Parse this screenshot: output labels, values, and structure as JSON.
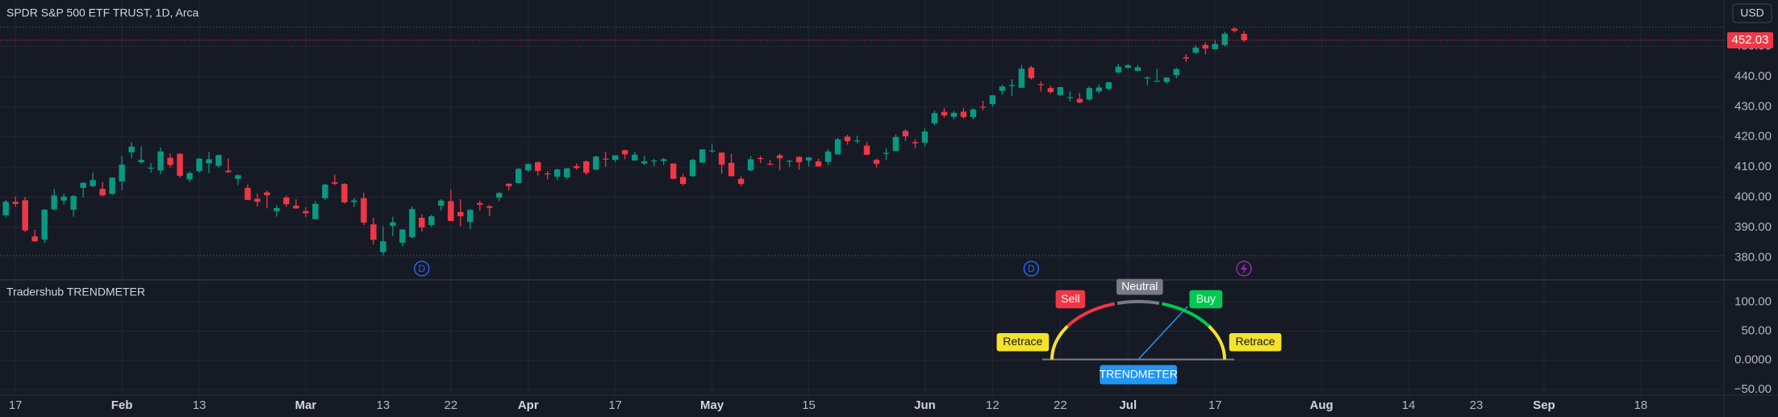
{
  "chart_data": [
    {
      "type": "candlestick",
      "title": "SPDR S&P 500 ETF TRUST, 1D, Arca",
      "currency": "USD",
      "up_color": "#089981",
      "down_color": "#f23645",
      "xlim": [
        -0.6,
        177.6
      ],
      "ylim": [
        372.6,
        465.4
      ],
      "yticks": [
        {
          "value": 380,
          "label": "380.00"
        },
        {
          "value": 390,
          "label": "390.00"
        },
        {
          "value": 400,
          "label": "400.00"
        },
        {
          "value": 410,
          "label": "410.00"
        },
        {
          "value": 420,
          "label": "420.00"
        },
        {
          "value": 430,
          "label": "430.00"
        },
        {
          "value": 440,
          "label": "440.00"
        },
        {
          "value": 450,
          "label": "450.00"
        }
      ],
      "xticks": [
        {
          "value": 1,
          "label": "17"
        },
        {
          "value": 12,
          "label": "Feb"
        },
        {
          "value": 20,
          "label": "13"
        },
        {
          "value": 31,
          "label": "Mar"
        },
        {
          "value": 39,
          "label": "13"
        },
        {
          "value": 46,
          "label": "22"
        },
        {
          "value": 54,
          "label": "Apr"
        },
        {
          "value": 63,
          "label": "17"
        },
        {
          "value": 73,
          "label": "May"
        },
        {
          "value": 83,
          "label": "15"
        },
        {
          "value": 95,
          "label": "Jun"
        },
        {
          "value": 102,
          "label": "12"
        },
        {
          "value": 109,
          "label": "22"
        },
        {
          "value": 116,
          "label": "Jul"
        },
        {
          "value": 125,
          "label": "17"
        },
        {
          "value": 136,
          "label": "Aug"
        },
        {
          "value": 145,
          "label": "14"
        },
        {
          "value": 152,
          "label": "23"
        },
        {
          "value": 159,
          "label": "Sep"
        },
        {
          "value": 169,
          "label": "18"
        }
      ],
      "grid": true,
      "events": [
        {
          "label": "D",
          "at": 43
        },
        {
          "label": "D",
          "at": 106
        }
      ],
      "ohlc": [
        [
          394.0,
          399.1,
          393.3,
          398.5
        ],
        [
          398.5,
          400.2,
          396.8,
          397.8
        ],
        [
          399.0,
          400.1,
          388.4,
          389.0
        ],
        [
          387.0,
          389.2,
          385.2,
          385.4
        ],
        [
          386.0,
          396.0,
          384.9,
          395.9
        ],
        [
          396.0,
          402.7,
          395.6,
          400.6
        ],
        [
          398.9,
          401.2,
          397.6,
          400.2
        ],
        [
          395.9,
          400.7,
          393.6,
          400.4
        ],
        [
          403.1,
          404.9,
          400.0,
          404.8
        ],
        [
          403.7,
          408.2,
          403.4,
          405.7
        ],
        [
          402.8,
          405.1,
          400.3,
          400.6
        ],
        [
          401.1,
          406.5,
          400.8,
          406.5
        ],
        [
          405.2,
          413.7,
          402.4,
          410.8
        ],
        [
          414.9,
          418.3,
          412.9,
          416.8
        ],
        [
          411.6,
          416.9,
          411.1,
          412.4
        ],
        [
          409.8,
          411.3,
          408.1,
          409.8
        ],
        [
          408.9,
          416.5,
          407.6,
          415.2
        ],
        [
          413.1,
          414.5,
          409.9,
          410.7
        ],
        [
          414.4,
          414.6,
          406.4,
          407.1
        ],
        [
          405.9,
          408.6,
          405.1,
          408.0
        ],
        [
          408.7,
          412.9,
          408.2,
          412.8
        ],
        [
          411.2,
          415.1,
          408.0,
          412.6
        ],
        [
          410.4,
          414.1,
          409.8,
          414.0
        ],
        [
          408.8,
          412.9,
          408.1,
          408.3
        ],
        [
          406.1,
          407.5,
          404.0,
          407.3
        ],
        [
          403.1,
          404.2,
          399.0,
          399.1
        ],
        [
          399.5,
          401.1,
          397.0,
          398.5
        ],
        [
          401.6,
          402.2,
          396.3,
          400.7
        ],
        [
          395.4,
          397.3,
          393.6,
          396.4
        ],
        [
          399.9,
          400.5,
          396.8,
          397.7
        ],
        [
          397.2,
          399.3,
          396.2,
          396.3
        ],
        [
          395.4,
          396.7,
          393.4,
          394.7
        ],
        [
          392.7,
          398.7,
          392.6,
          397.8
        ],
        [
          399.7,
          404.5,
          399.0,
          404.2
        ],
        [
          405.0,
          407.5,
          404.0,
          404.5
        ],
        [
          404.4,
          404.7,
          397.9,
          398.3
        ],
        [
          398.4,
          399.7,
          396.8,
          398.9
        ],
        [
          399.7,
          401.5,
          390.7,
          391.6
        ],
        [
          391.0,
          393.2,
          384.3,
          385.9
        ],
        [
          381.8,
          390.4,
          380.7,
          385.4
        ],
        [
          390.5,
          393.5,
          387.1,
          391.7
        ],
        [
          384.9,
          389.5,
          383.7,
          389.3
        ],
        [
          386.8,
          397.0,
          386.3,
          396.1
        ],
        [
          393.2,
          394.4,
          388.6,
          390.0
        ],
        [
          390.8,
          394.2,
          390.1,
          393.7
        ],
        [
          397.2,
          399.4,
          395.6,
          398.9
        ],
        [
          398.7,
          402.5,
          392.1,
          392.1
        ],
        [
          395.1,
          399.3,
          390.4,
          393.7
        ],
        [
          391.8,
          396.0,
          389.4,
          395.8
        ],
        [
          398.1,
          398.9,
          395.6,
          397.5
        ],
        [
          397.0,
          397.5,
          393.7,
          396.5
        ],
        [
          399.9,
          401.7,
          398.7,
          401.4
        ],
        [
          404.5,
          404.6,
          402.3,
          403.7
        ],
        [
          404.7,
          409.7,
          404.5,
          409.4
        ],
        [
          408.9,
          411.3,
          408.4,
          411.0
        ],
        [
          411.6,
          411.9,
          407.2,
          408.7
        ],
        [
          407.9,
          408.7,
          405.9,
          407.6
        ],
        [
          406.8,
          409.5,
          405.7,
          409.2
        ],
        [
          406.6,
          409.7,
          405.9,
          409.6
        ],
        [
          410.3,
          411.2,
          409.2,
          409.7
        ],
        [
          411.9,
          412.2,
          407.4,
          408.1
        ],
        [
          409.2,
          413.8,
          408.9,
          413.5
        ],
        [
          412.8,
          415.1,
          410.1,
          412.5
        ],
        [
          412.4,
          413.9,
          411.6,
          413.9
        ],
        [
          415.6,
          415.7,
          412.6,
          414.2
        ],
        [
          412.2,
          415.1,
          412.1,
          414.1
        ],
        [
          411.2,
          413.7,
          410.7,
          411.9
        ],
        [
          412.2,
          412.7,
          410.2,
          412.2
        ],
        [
          412.0,
          413.1,
          410.7,
          412.6
        ],
        [
          411.2,
          411.2,
          406.0,
          406.1
        ],
        [
          406.7,
          407.8,
          403.8,
          404.4
        ],
        [
          407.0,
          412.7,
          406.7,
          412.4
        ],
        [
          411.5,
          415.9,
          411.4,
          415.9
        ],
        [
          415.5,
          417.6,
          414.7,
          415.5
        ],
        [
          414.8,
          414.8,
          407.8,
          410.8
        ],
        [
          411.4,
          414.4,
          406.9,
          407.0
        ],
        [
          406.1,
          406.9,
          403.7,
          404.4
        ],
        [
          408.9,
          413.7,
          408.6,
          412.6
        ],
        [
          413.0,
          413.7,
          411.3,
          412.9
        ],
        [
          411.1,
          412.4,
          410.7,
          410.9
        ],
        [
          413.9,
          414.5,
          408.9,
          412.9
        ],
        [
          412.0,
          412.4,
          410.0,
          412.1
        ],
        [
          413.4,
          413.6,
          409.1,
          411.6
        ],
        [
          412.2,
          413.4,
          410.2,
          413.2
        ],
        [
          411.9,
          412.8,
          410.2,
          410.2
        ],
        [
          411.7,
          415.9,
          410.6,
          415.2
        ],
        [
          414.2,
          419.7,
          414.2,
          419.2
        ],
        [
          420.1,
          420.7,
          417.4,
          418.6
        ],
        [
          418.6,
          420.4,
          417.9,
          418.8
        ],
        [
          417.1,
          418.3,
          413.9,
          414.1
        ],
        [
          412.4,
          412.8,
          409.9,
          411.1
        ],
        [
          414.7,
          416.2,
          412.4,
          414.7
        ],
        [
          415.3,
          420.8,
          415.3,
          420.0
        ],
        [
          422.0,
          422.6,
          418.7,
          420.2
        ],
        [
          418.3,
          419.2,
          416.2,
          417.9
        ],
        [
          418.1,
          422.9,
          416.8,
          421.8
        ],
        [
          424.5,
          428.7,
          423.8,
          427.9
        ],
        [
          428.3,
          429.6,
          426.4,
          427.1
        ],
        [
          426.7,
          428.6,
          425.8,
          428.0
        ],
        [
          428.4,
          429.6,
          426.1,
          426.6
        ],
        [
          426.6,
          429.6,
          425.8,
          429.1
        ],
        [
          430.0,
          432.0,
          428.9,
          429.9
        ],
        [
          430.9,
          433.9,
          430.0,
          433.8
        ],
        [
          435.3,
          437.3,
          434.0,
          436.7
        ],
        [
          437.0,
          439.1,
          433.6,
          437.2
        ],
        [
          436.3,
          443.9,
          436.2,
          442.6
        ],
        [
          443.0,
          443.6,
          439.0,
          439.5
        ],
        [
          437.5,
          438.4,
          435.0,
          437.2
        ],
        [
          436.2,
          437.0,
          434.3,
          434.9
        ],
        [
          433.9,
          436.6,
          433.6,
          436.5
        ],
        [
          432.9,
          435.1,
          431.7,
          433.2
        ],
        [
          432.6,
          434.6,
          431.2,
          431.4
        ],
        [
          432.4,
          436.8,
          431.9,
          436.2
        ],
        [
          435.1,
          437.4,
          434.4,
          436.4
        ],
        [
          436.0,
          438.3,
          435.5,
          438.1
        ],
        [
          441.4,
          444.3,
          441.1,
          443.3
        ],
        [
          442.9,
          444.1,
          442.6,
          443.8
        ],
        [
          441.9,
          443.9,
          441.9,
          443.1
        ],
        [
          439.4,
          440.1,
          437.1,
          439.7
        ],
        [
          438.6,
          442.6,
          438.3,
          438.6
        ],
        [
          438.2,
          439.8,
          437.6,
          439.7
        ],
        [
          440.5,
          443.0,
          439.4,
          442.5
        ],
        [
          446.4,
          447.5,
          444.9,
          446.0
        ],
        [
          447.9,
          450.4,
          447.5,
          449.6
        ],
        [
          450.5,
          451.4,
          447.4,
          449.3
        ],
        [
          449.1,
          451.9,
          449.1,
          450.8
        ],
        [
          450.5,
          454.9,
          450.0,
          454.2
        ],
        [
          455.9,
          456.4,
          454.6,
          455.2
        ],
        [
          454.2,
          455.1,
          451.4,
          452.03
        ]
      ]
    },
    {
      "type": "gauge",
      "title": "Tradershub TRENDMETER",
      "ylim": [
        -59.8,
        137.7
      ],
      "yticks": [
        {
          "value": 100,
          "label": "100.00"
        },
        {
          "value": 50,
          "label": "50.00"
        },
        {
          "value": 0,
          "label": "0.0000"
        },
        {
          "value": -50,
          "label": "−50.00"
        }
      ],
      "labels": [
        "Retrace",
        "Sell",
        "Neutral",
        "Buy",
        "Retrace"
      ],
      "caption": "TRENDMETER"
    }
  ]
}
